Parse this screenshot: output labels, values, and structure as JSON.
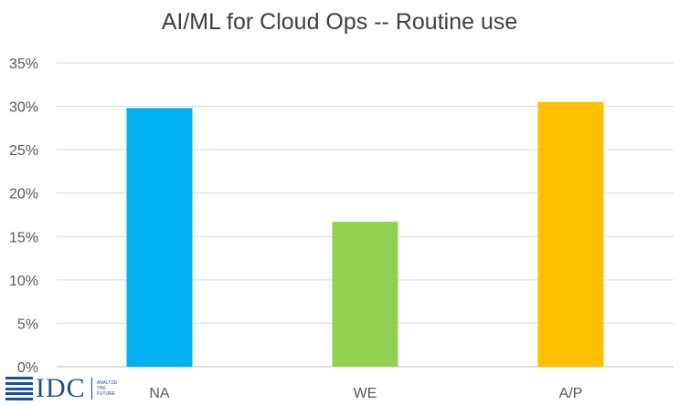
{
  "chart_data": {
    "type": "bar",
    "title": "AI/ML for Cloud Ops -- Routine use",
    "categories": [
      "NA",
      "WE",
      "A/P"
    ],
    "values": [
      0.298,
      0.167,
      0.305
    ],
    "bar_colors": [
      "#00b0f0",
      "#92d050",
      "#ffc000"
    ],
    "ylim": [
      0,
      0.35
    ],
    "yticks": [
      0,
      0.05,
      0.1,
      0.15,
      0.2,
      0.25,
      0.3,
      0.35
    ],
    "ytick_labels": [
      "0%",
      "5%",
      "10%",
      "15%",
      "20%",
      "25%",
      "30%",
      "35%"
    ],
    "xlabel": "",
    "ylabel": "",
    "grid": true,
    "legend": "none"
  },
  "logo": {
    "brand": "IDC",
    "tagline": [
      "ANALYZE",
      "THE",
      "FUTURE"
    ]
  }
}
